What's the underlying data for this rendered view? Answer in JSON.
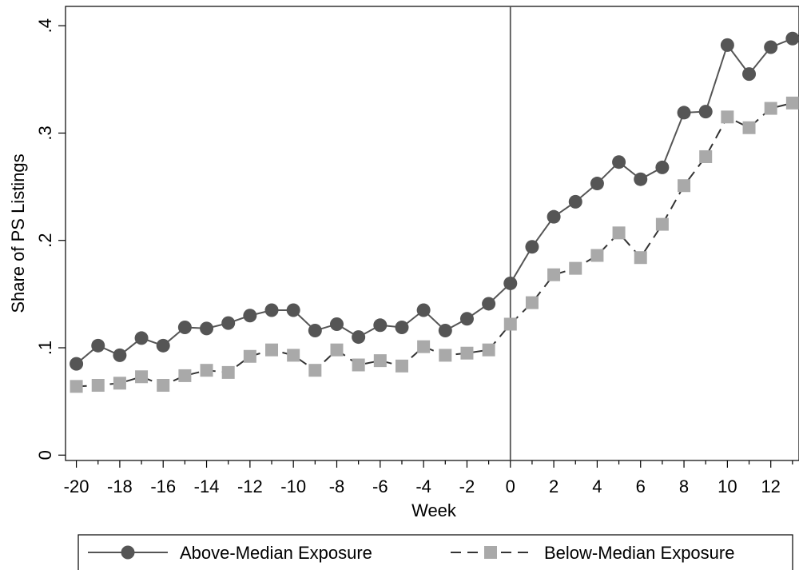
{
  "chart_data": {
    "type": "line",
    "xlabel": "Week",
    "ylabel": "Share of PS Listings",
    "xlim": [
      -20.5,
      13.3
    ],
    "ylim": [
      -0.005,
      0.418
    ],
    "x_ticks": [
      -20,
      -18,
      -16,
      -14,
      -12,
      -10,
      -8,
      -6,
      -4,
      -2,
      0,
      2,
      4,
      6,
      8,
      10,
      12
    ],
    "y_ticks": [
      0,
      0.1,
      0.2,
      0.3,
      0.4
    ],
    "y_tick_labels": [
      "0",
      ".1",
      ".2",
      ".3",
      ".4"
    ],
    "vertical_line_x": 0,
    "grid": false,
    "legend_position": "bottom",
    "x": [
      -20,
      -19,
      -18,
      -17,
      -16,
      -15,
      -14,
      -13,
      -12,
      -11,
      -10,
      -9,
      -8,
      -7,
      -6,
      -5,
      -4,
      -3,
      -2,
      -1,
      0,
      1,
      2,
      3,
      4,
      5,
      6,
      7,
      8,
      9,
      10,
      11,
      12,
      13
    ],
    "series": [
      {
        "name": "Above-Median Exposure",
        "color": "#555555",
        "line_style": "solid",
        "marker": "circle",
        "values": [
          0.085,
          0.102,
          0.093,
          0.109,
          0.102,
          0.119,
          0.118,
          0.123,
          0.13,
          0.135,
          0.135,
          0.116,
          0.122,
          0.11,
          0.121,
          0.119,
          0.135,
          0.116,
          0.127,
          0.141,
          0.16,
          0.194,
          0.222,
          0.236,
          0.253,
          0.273,
          0.257,
          0.268,
          0.319,
          0.32,
          0.382,
          0.355,
          0.38,
          0.388
        ]
      },
      {
        "name": "Below-Median Exposure",
        "color": "#a9a9a9",
        "line_style": "dashed",
        "marker": "square",
        "values": [
          0.064,
          0.065,
          0.067,
          0.073,
          0.065,
          0.074,
          0.079,
          0.077,
          0.092,
          0.098,
          0.093,
          0.079,
          0.098,
          0.084,
          0.088,
          0.083,
          0.101,
          0.093,
          0.095,
          0.098,
          0.122,
          0.142,
          0.168,
          0.174,
          0.186,
          0.207,
          0.184,
          0.215,
          0.251,
          0.278,
          0.315,
          0.305,
          0.323,
          0.328
        ]
      }
    ]
  }
}
